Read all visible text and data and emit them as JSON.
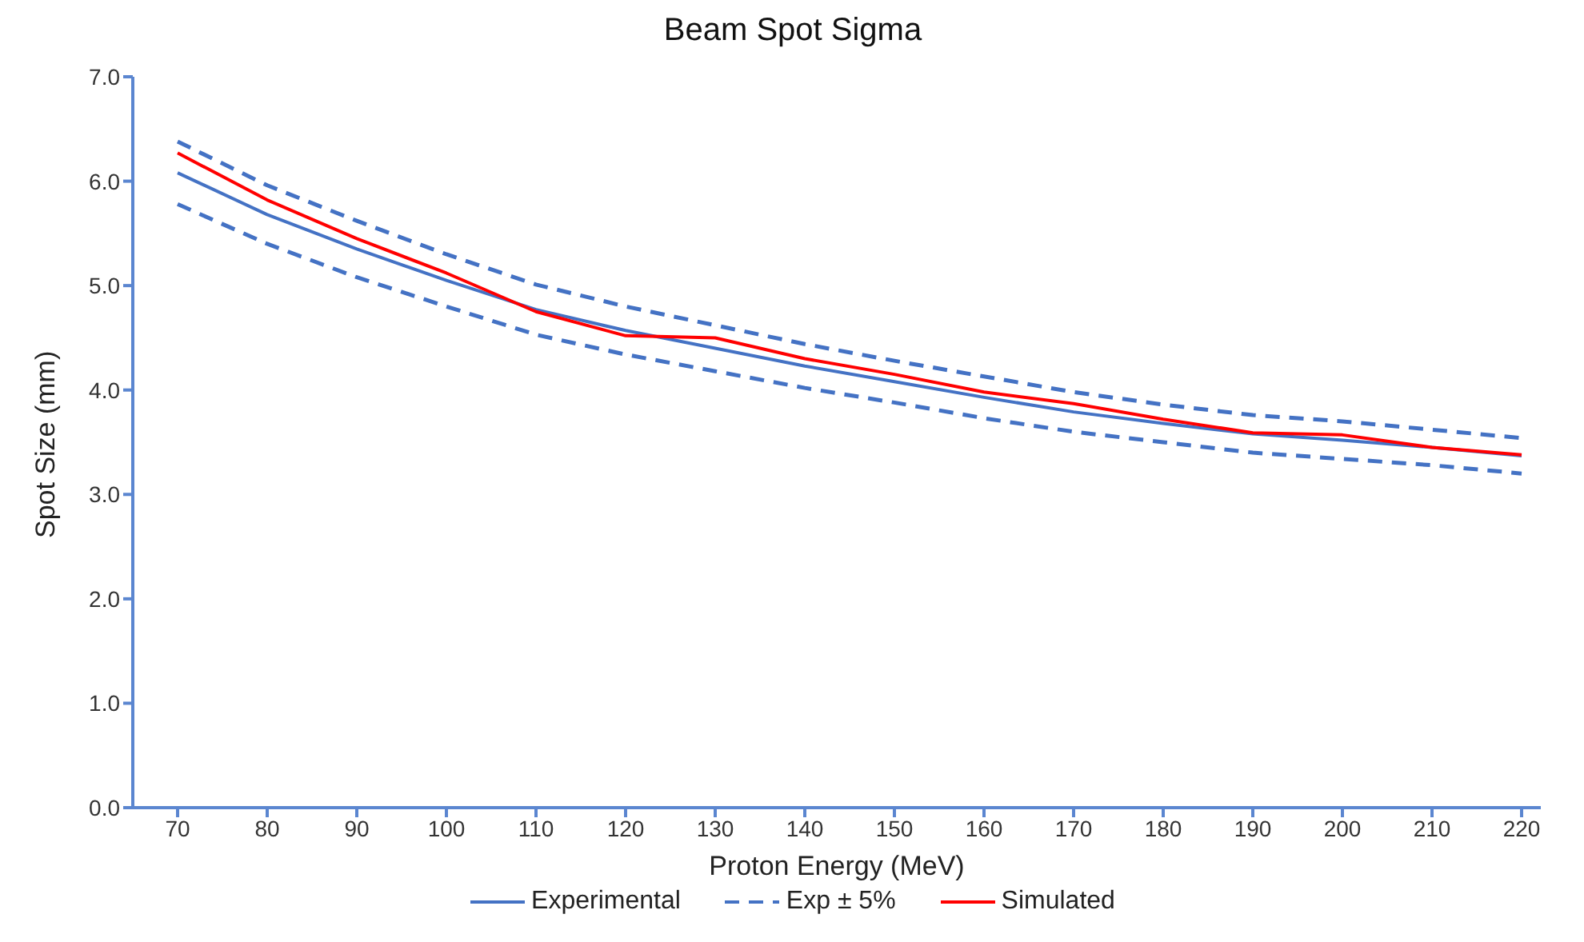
{
  "chart_data": {
    "type": "line",
    "title": "Beam Spot Sigma",
    "xlabel": "Proton Energy (MeV)",
    "ylabel": "Spot Size (mm)",
    "categories": [
      "70",
      "80",
      "90",
      "100",
      "110",
      "120",
      "130",
      "140",
      "150",
      "160",
      "170",
      "180",
      "190",
      "200",
      "210",
      "220"
    ],
    "series": [
      {
        "name": "Experimental",
        "color": "#4472c4",
        "line_style": "solid",
        "values": [
          6.08,
          5.68,
          5.35,
          5.05,
          4.77,
          4.57,
          4.4,
          4.23,
          4.08,
          3.93,
          3.79,
          3.68,
          3.58,
          3.52,
          3.45,
          3.37
        ]
      },
      {
        "name": "Exp ± 5%",
        "color": "#4472c4",
        "line_style": "dashed",
        "values": [
          6.38,
          5.96,
          5.62,
          5.3,
          5.01,
          4.8,
          4.62,
          4.44,
          4.28,
          4.13,
          3.98,
          3.86,
          3.76,
          3.7,
          3.62,
          3.54
        ]
      },
      {
        "color": "#4472c4",
        "line_style": "dashed",
        "values": [
          5.78,
          5.4,
          5.08,
          4.8,
          4.53,
          4.34,
          4.18,
          4.02,
          3.88,
          3.73,
          3.6,
          3.5,
          3.4,
          3.34,
          3.28,
          3.2
        ]
      },
      {
        "name": "Simulated",
        "color": "#ff0000",
        "line_style": "solid",
        "values": [
          6.27,
          5.82,
          5.45,
          5.12,
          4.75,
          4.52,
          4.5,
          4.3,
          4.15,
          3.98,
          3.87,
          3.72,
          3.59,
          3.57,
          3.45,
          3.38
        ]
      }
    ],
    "ylim": [
      0,
      7
    ],
    "yticks": [
      {
        "value": 0,
        "label": "0.0"
      },
      {
        "value": 1,
        "label": "1.0"
      },
      {
        "value": 2,
        "label": "2.0"
      },
      {
        "value": 3,
        "label": "3.0"
      },
      {
        "value": 4,
        "label": "4.0"
      },
      {
        "value": 5,
        "label": "5.0"
      },
      {
        "value": 6,
        "label": "6.0"
      },
      {
        "value": 7,
        "label": "7.0"
      }
    ],
    "grid": false,
    "legend": "bottom",
    "marker": "none"
  }
}
